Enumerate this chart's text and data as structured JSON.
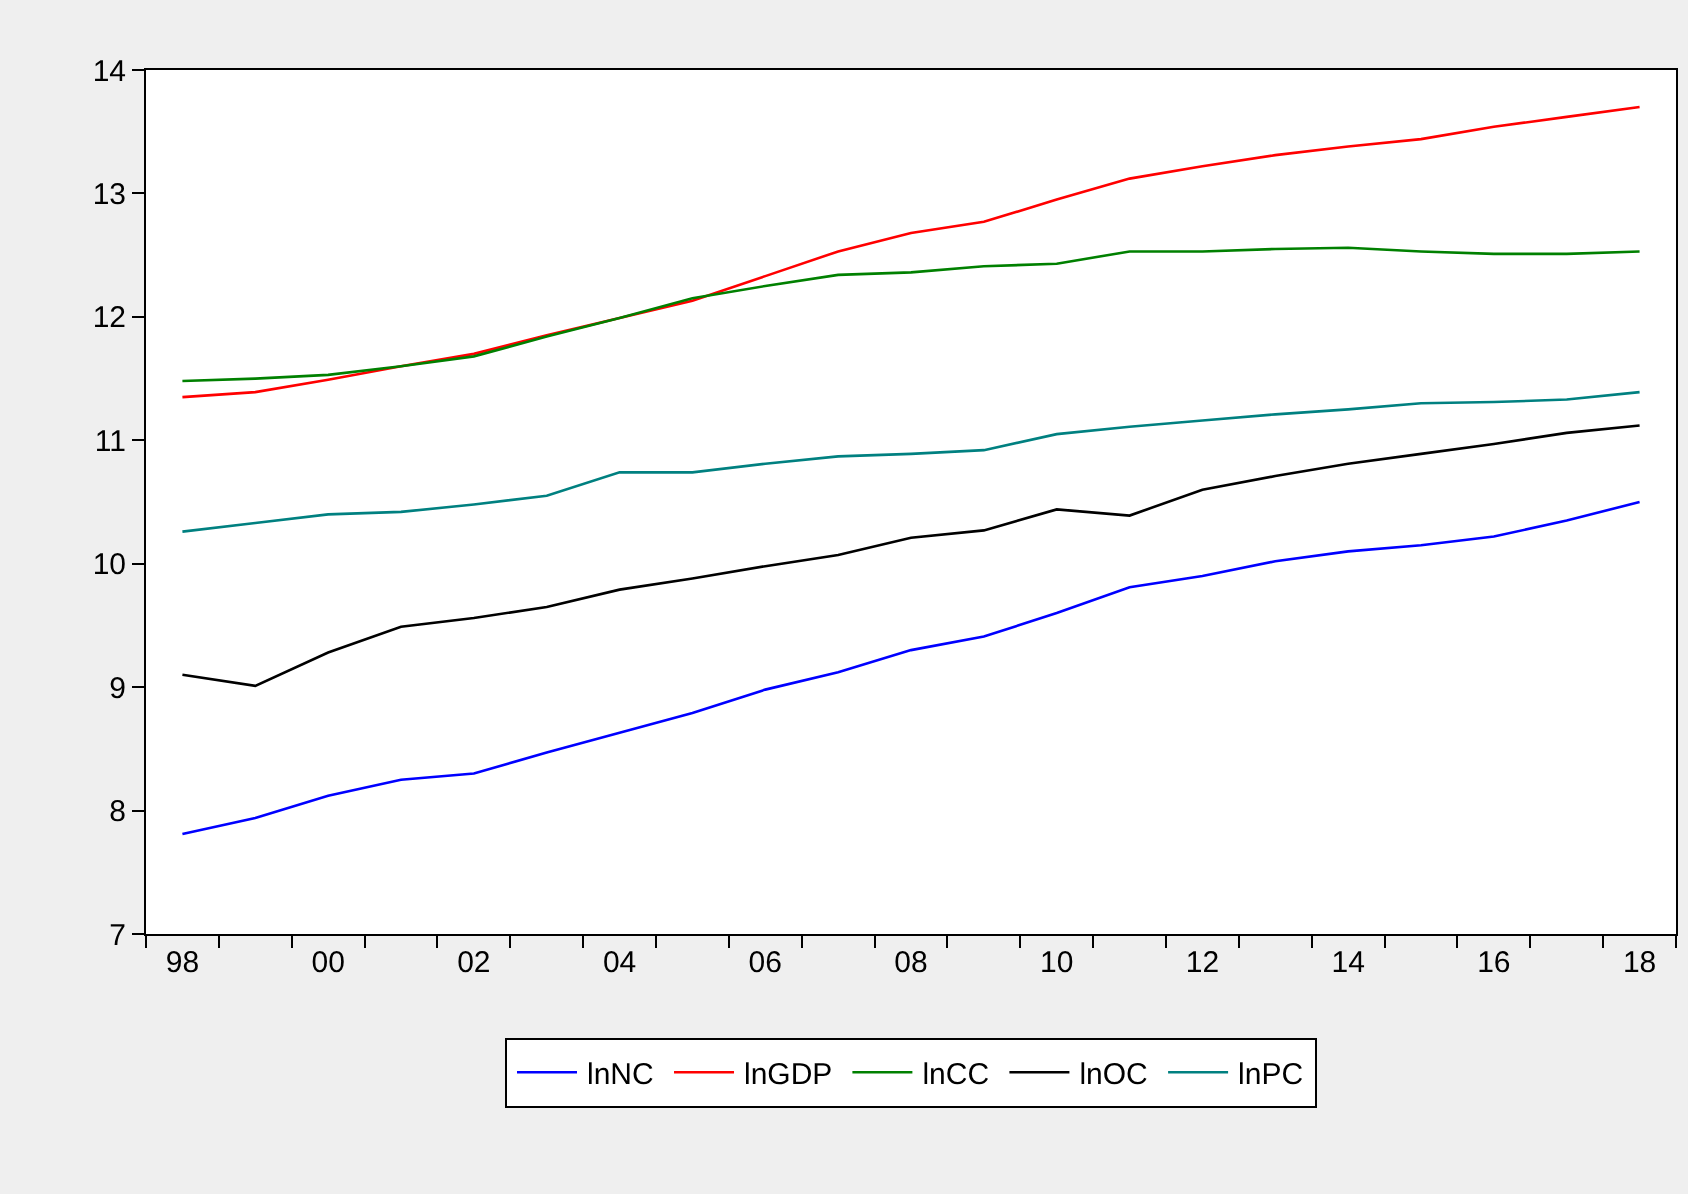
{
  "chart_data": {
    "type": "line",
    "x": [
      1998,
      1999,
      2000,
      2001,
      2002,
      2003,
      2004,
      2005,
      2006,
      2007,
      2008,
      2009,
      2010,
      2011,
      2012,
      2013,
      2014,
      2015,
      2016,
      2017,
      2018
    ],
    "series": [
      {
        "name": "lnNC",
        "color": "#0000ff",
        "values": [
          7.81,
          7.94,
          8.12,
          8.25,
          8.3,
          8.47,
          8.63,
          8.79,
          8.98,
          9.12,
          9.3,
          9.41,
          9.6,
          9.81,
          9.9,
          10.02,
          10.1,
          10.15,
          10.22,
          10.35,
          10.5
        ]
      },
      {
        "name": "lnGDP",
        "color": "#ff0000",
        "values": [
          11.35,
          11.39,
          11.49,
          11.6,
          11.7,
          11.85,
          11.99,
          12.13,
          12.33,
          12.53,
          12.68,
          12.77,
          12.95,
          13.12,
          13.22,
          13.31,
          13.38,
          13.44,
          13.54,
          13.62,
          13.7
        ]
      },
      {
        "name": "lnCC",
        "color": "#008000",
        "values": [
          11.48,
          11.5,
          11.53,
          11.6,
          11.68,
          11.84,
          11.99,
          12.15,
          12.25,
          12.34,
          12.36,
          12.41,
          12.43,
          12.53,
          12.53,
          12.55,
          12.56,
          12.53,
          12.51,
          12.51,
          12.53
        ]
      },
      {
        "name": "lnOC",
        "color": "#000000",
        "values": [
          9.1,
          9.01,
          9.28,
          9.49,
          9.56,
          9.65,
          9.79,
          9.88,
          9.98,
          10.07,
          10.21,
          10.27,
          10.44,
          10.39,
          10.6,
          10.71,
          10.81,
          10.89,
          10.97,
          11.06,
          11.12
        ]
      },
      {
        "name": "lnPC",
        "color": "#008080",
        "values": [
          10.26,
          10.33,
          10.4,
          10.42,
          10.48,
          10.55,
          10.74,
          10.74,
          10.81,
          10.87,
          10.89,
          10.92,
          11.05,
          11.11,
          11.16,
          11.21,
          11.25,
          11.3,
          11.31,
          11.33,
          11.39
        ]
      }
    ],
    "xlim": [
      1997.5,
      2018.5
    ],
    "xticks": [
      {
        "value": 1998,
        "label": "98"
      },
      {
        "value": 2000,
        "label": "00"
      },
      {
        "value": 2002,
        "label": "02"
      },
      {
        "value": 2004,
        "label": "04"
      },
      {
        "value": 2006,
        "label": "06"
      },
      {
        "value": 2008,
        "label": "08"
      },
      {
        "value": 2010,
        "label": "10"
      },
      {
        "value": 2012,
        "label": "12"
      },
      {
        "value": 2014,
        "label": "14"
      },
      {
        "value": 2016,
        "label": "16"
      },
      {
        "value": 2018,
        "label": "18"
      },
      {
        "value": 1997.5,
        "label": null
      },
      {
        "value": 1998.5,
        "label": null
      },
      {
        "value": 1999.5,
        "label": null
      },
      {
        "value": 2000.5,
        "label": null
      },
      {
        "value": 2001.5,
        "label": null
      },
      {
        "value": 2002.5,
        "label": null
      },
      {
        "value": 2003.5,
        "label": null
      },
      {
        "value": 2004.5,
        "label": null
      },
      {
        "value": 2005.5,
        "label": null
      },
      {
        "value": 2006.5,
        "label": null
      },
      {
        "value": 2007.5,
        "label": null
      },
      {
        "value": 2008.5,
        "label": null
      },
      {
        "value": 2009.5,
        "label": null
      },
      {
        "value": 2010.5,
        "label": null
      },
      {
        "value": 2011.5,
        "label": null
      },
      {
        "value": 2012.5,
        "label": null
      },
      {
        "value": 2013.5,
        "label": null
      },
      {
        "value": 2014.5,
        "label": null
      },
      {
        "value": 2015.5,
        "label": null
      },
      {
        "value": 2016.5,
        "label": null
      },
      {
        "value": 2017.5,
        "label": null
      },
      {
        "value": 2018.5,
        "label": null
      }
    ],
    "ylim": [
      7,
      14
    ],
    "yticks": [
      7,
      8,
      9,
      10,
      11,
      12,
      13,
      14
    ],
    "grid": false,
    "legend": "bottom",
    "line_style": "solid",
    "marker": "none"
  }
}
